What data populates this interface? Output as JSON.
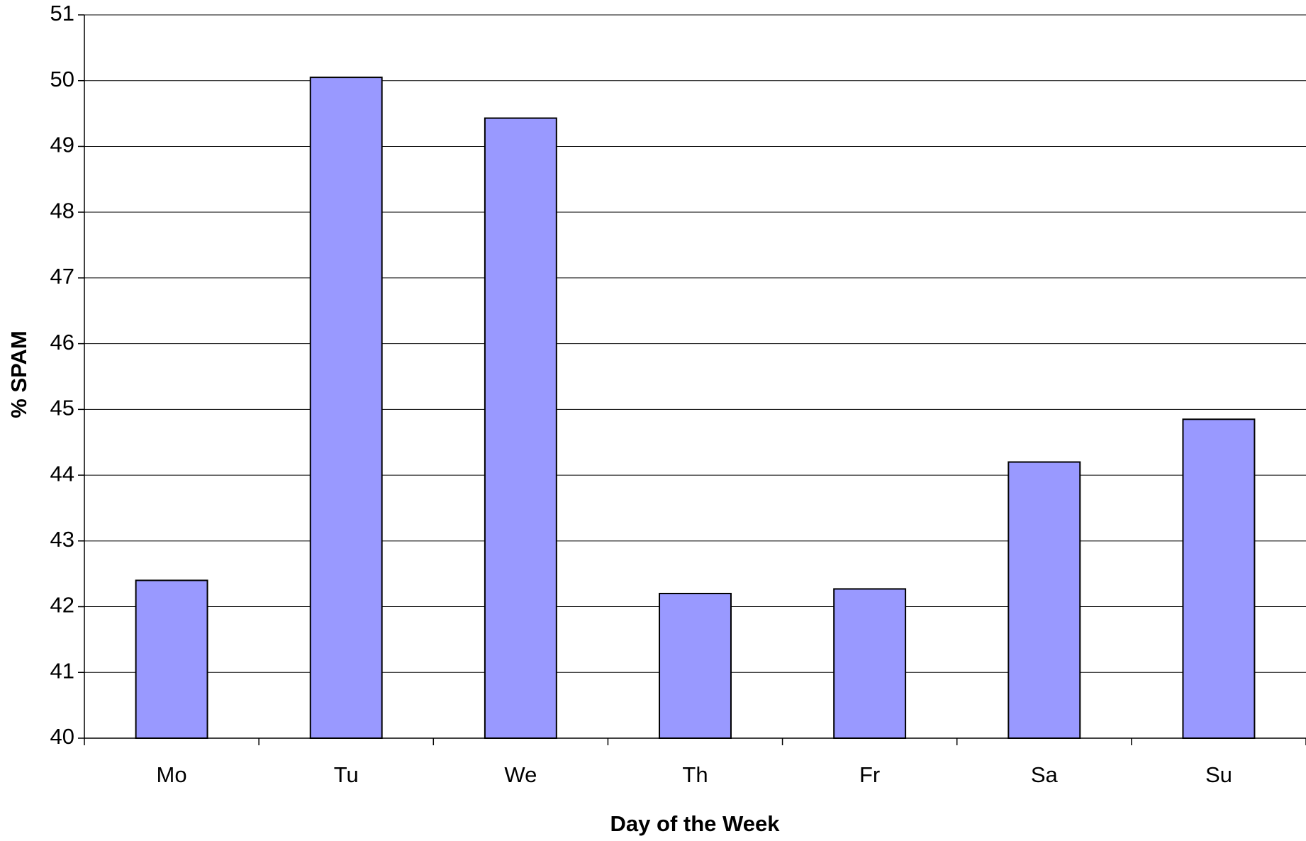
{
  "chart_data": {
    "type": "bar",
    "x_label": "Day of the Week",
    "y_label": "% SPAM",
    "categories": [
      "Mo",
      "Tu",
      "We",
      "Th",
      "Fr",
      "Sa",
      "Su"
    ],
    "values": [
      42.4,
      50.05,
      49.43,
      42.2,
      42.27,
      44.2,
      44.85
    ],
    "color": "#9999ff",
    "ylim": [
      40,
      51
    ],
    "yticks": [
      40,
      41,
      42,
      43,
      44,
      45,
      46,
      47,
      48,
      49,
      50,
      51
    ],
    "grid": true
  }
}
